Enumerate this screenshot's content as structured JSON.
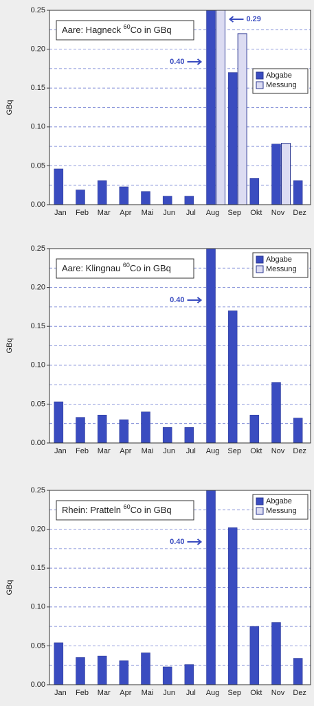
{
  "chart_data": [
    {
      "type": "bar",
      "title_parts": [
        "Aare: Hagneck ",
        "60",
        "Co in GBq"
      ],
      "y_label": "GBq",
      "categories": [
        "Jan",
        "Feb",
        "Mar",
        "Apr",
        "Mai",
        "Jun",
        "Jul",
        "Aug",
        "Sep",
        "Okt",
        "Nov",
        "Dez"
      ],
      "series": [
        {
          "name": "Abgabe",
          "color": "#3a4cc0",
          "values": [
            0.046,
            0.019,
            0.031,
            0.023,
            0.017,
            0.011,
            0.011,
            0.4,
            0.17,
            0.034,
            0.078,
            0.031
          ],
          "value_labels": [
            null,
            null,
            null,
            null,
            null,
            null,
            null,
            "0.40",
            null,
            null,
            null,
            null
          ]
        },
        {
          "name": "Messung",
          "color": "#dcdcf2",
          "values": [
            null,
            null,
            null,
            null,
            null,
            null,
            null,
            0.29,
            0.22,
            null,
            0.079,
            null
          ],
          "value_labels": [
            null,
            null,
            null,
            null,
            null,
            null,
            null,
            "0.29",
            null,
            null,
            null,
            null
          ]
        }
      ],
      "ylim": [
        0,
        0.25
      ],
      "yticks": [
        {
          "value": 0,
          "label": "0.00"
        },
        {
          "value": 0.05,
          "label": "0.05"
        },
        {
          "value": 0.1,
          "label": "0.10"
        },
        {
          "value": 0.15,
          "label": "0.15"
        },
        {
          "value": 0.2,
          "label": "0.20"
        },
        {
          "value": 0.25,
          "label": "0.25"
        }
      ],
      "minor_yticks": [
        0.025,
        0.075,
        0.125,
        0.175,
        0.225
      ],
      "grid": true,
      "legend_position": "center right"
    },
    {
      "type": "bar",
      "title_parts": [
        "Aare: Klingnau ",
        "60",
        "Co in GBq"
      ],
      "y_label": "GBq",
      "categories": [
        "Jan",
        "Feb",
        "Mar",
        "Apr",
        "Mai",
        "Jun",
        "Jul",
        "Aug",
        "Sep",
        "Okt",
        "Nov",
        "Dez"
      ],
      "series": [
        {
          "name": "Abgabe",
          "color": "#3a4cc0",
          "values": [
            0.053,
            0.033,
            0.036,
            0.03,
            0.04,
            0.02,
            0.02,
            0.4,
            0.17,
            0.036,
            0.078,
            0.032
          ],
          "value_labels": [
            null,
            null,
            null,
            null,
            null,
            null,
            null,
            "0.40",
            null,
            null,
            null,
            null
          ]
        },
        {
          "name": "Messung",
          "color": "#dcdcf2",
          "values": [
            null,
            null,
            null,
            null,
            null,
            null,
            null,
            null,
            null,
            null,
            null,
            null
          ]
        }
      ],
      "ylim": [
        0,
        0.25
      ],
      "yticks": [
        {
          "value": 0,
          "label": "0.00"
        },
        {
          "value": 0.05,
          "label": "0.05"
        },
        {
          "value": 0.1,
          "label": "0.10"
        },
        {
          "value": 0.15,
          "label": "0.15"
        },
        {
          "value": 0.2,
          "label": "0.20"
        },
        {
          "value": 0.25,
          "label": "0.25"
        }
      ],
      "minor_yticks": [
        0.025,
        0.075,
        0.125,
        0.175,
        0.225
      ],
      "grid": true,
      "legend_position": "upper right"
    },
    {
      "type": "bar",
      "title_parts": [
        "Rhein: Pratteln ",
        "60",
        "Co in GBq"
      ],
      "y_label": "GBq",
      "categories": [
        "Jan",
        "Feb",
        "Mar",
        "Apr",
        "Mai",
        "Jun",
        "Jul",
        "Aug",
        "Sep",
        "Okt",
        "Nov",
        "Dez"
      ],
      "series": [
        {
          "name": "Abgabe",
          "color": "#3a4cc0",
          "values": [
            0.054,
            0.035,
            0.037,
            0.031,
            0.041,
            0.023,
            0.026,
            0.4,
            0.202,
            0.075,
            0.08,
            0.034
          ],
          "value_labels": [
            null,
            null,
            null,
            null,
            null,
            null,
            null,
            "0.40",
            null,
            null,
            null,
            null
          ]
        },
        {
          "name": "Messung",
          "color": "#dcdcf2",
          "values": [
            null,
            null,
            null,
            null,
            null,
            null,
            null,
            null,
            null,
            null,
            null,
            null
          ]
        }
      ],
      "ylim": [
        0,
        0.25
      ],
      "yticks": [
        {
          "value": 0,
          "label": "0.00"
        },
        {
          "value": 0.05,
          "label": "0.05"
        },
        {
          "value": 0.1,
          "label": "0.10"
        },
        {
          "value": 0.15,
          "label": "0.15"
        },
        {
          "value": 0.2,
          "label": "0.20"
        },
        {
          "value": 0.25,
          "label": "0.25"
        }
      ],
      "minor_yticks": [
        0.025,
        0.075,
        0.125,
        0.175,
        0.225
      ],
      "grid": true,
      "legend_position": "upper right"
    }
  ]
}
